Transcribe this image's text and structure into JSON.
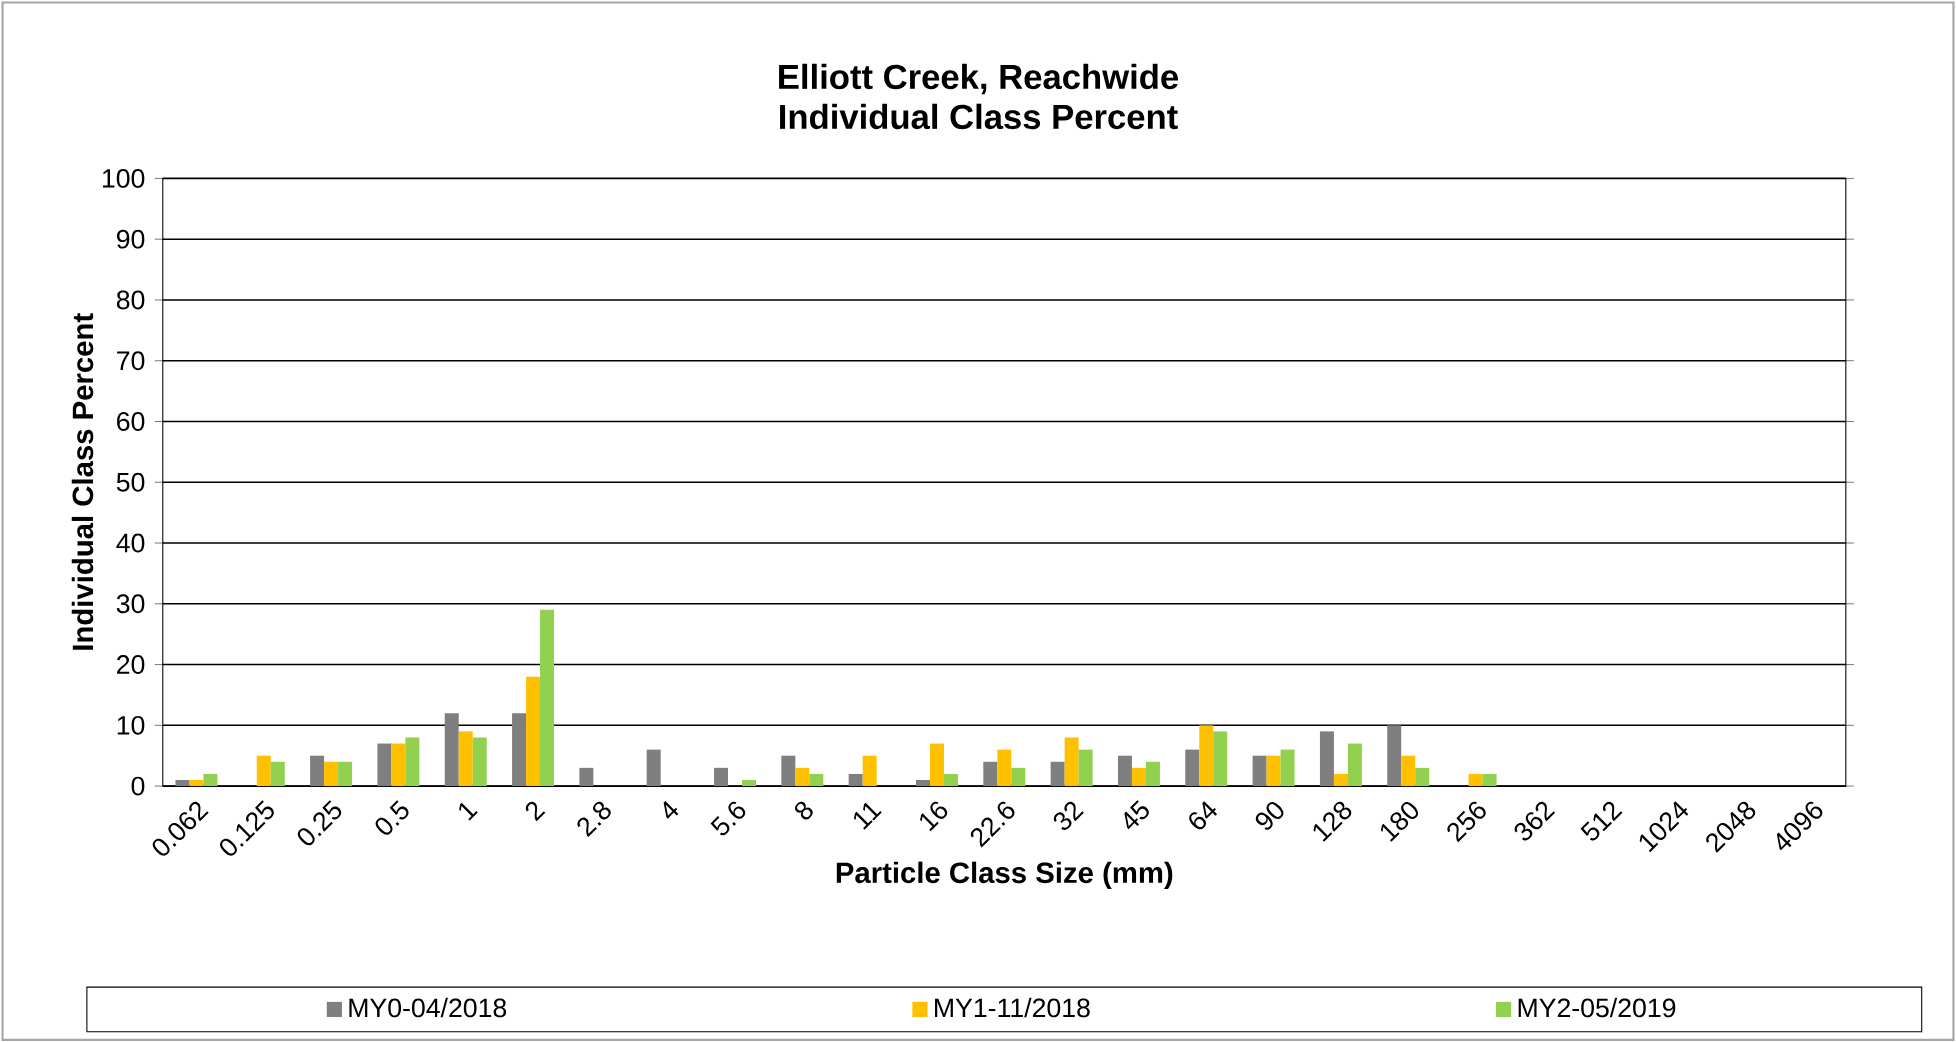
{
  "chart_data": {
    "type": "bar",
    "title": "Elliott Creek, Reachwide",
    "subtitle": "Individual Class Percent",
    "xlabel": "Particle Class Size (mm)",
    "ylabel": "Individual Class Percent",
    "categories": [
      "0.062",
      "0.125",
      "0.25",
      "0.5",
      "1",
      "2",
      "2.8",
      "4",
      "5.6",
      "8",
      "11",
      "16",
      "22.6",
      "32",
      "45",
      "64",
      "90",
      "128",
      "180",
      "256",
      "362",
      "512",
      "1024",
      "2048",
      "4096"
    ],
    "series": [
      {
        "name": "MY0-04/2018",
        "color": "#7f7f7f",
        "values": [
          1,
          0,
          5,
          7,
          12,
          12,
          3,
          6,
          3,
          5,
          2,
          1,
          4,
          4,
          5,
          6,
          5,
          9,
          10,
          0,
          0,
          0,
          0,
          0,
          0
        ]
      },
      {
        "name": "MY1-11/2018",
        "color": "#ffc000",
        "values": [
          1,
          5,
          4,
          7,
          9,
          18,
          0,
          0,
          0,
          3,
          5,
          7,
          6,
          8,
          3,
          10,
          5,
          2,
          5,
          2,
          0,
          0,
          0,
          0,
          0
        ]
      },
      {
        "name": "MY2-05/2019",
        "color": "#92d050",
        "values": [
          2,
          4,
          4,
          8,
          8,
          29,
          0,
          0,
          1,
          2,
          0,
          2,
          3,
          6,
          4,
          9,
          6,
          7,
          3,
          2,
          0,
          0,
          0,
          0,
          0
        ]
      }
    ],
    "ylim": [
      0,
      100
    ],
    "yticks": [
      0,
      10,
      20,
      30,
      40,
      50,
      60,
      70,
      80,
      90,
      100
    ],
    "grid": "y",
    "legend": "bottom"
  }
}
